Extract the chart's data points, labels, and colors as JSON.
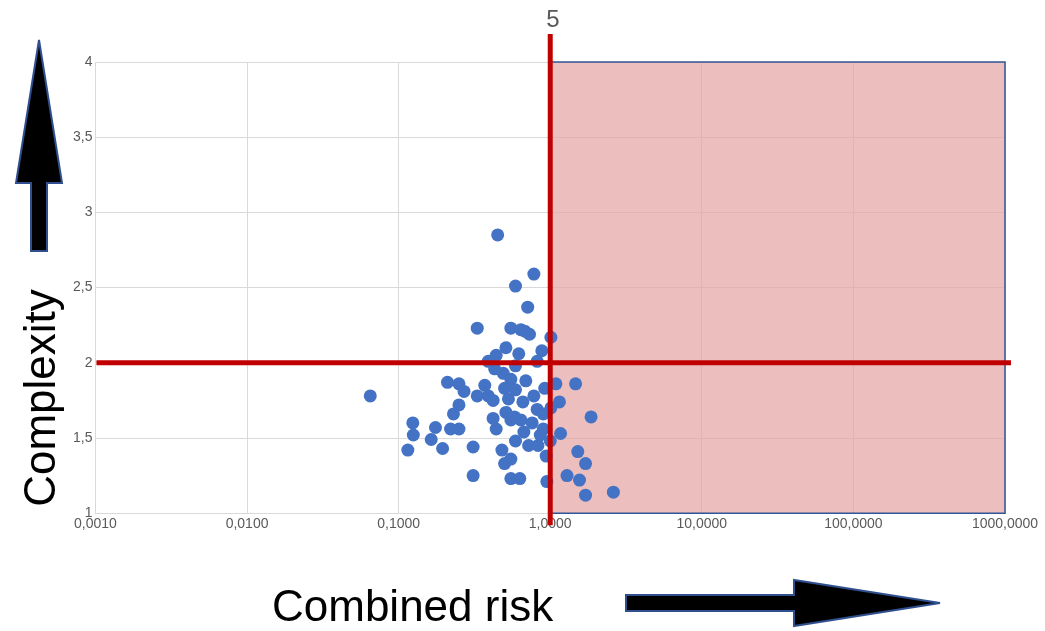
{
  "chart_data": {
    "type": "scatter",
    "xlabel": "Combined risk",
    "ylabel": "Complexity",
    "log": "x",
    "grid": true,
    "legend": false,
    "marker": "circle",
    "xlim": [
      0.001,
      1000
    ],
    "ylim": [
      1,
      4
    ],
    "xticks": [
      {
        "value": 0.001,
        "label": "0,0010"
      },
      {
        "value": 0.01,
        "label": "0,0100"
      },
      {
        "value": 0.1,
        "label": "0,1000"
      },
      {
        "value": 1,
        "label": "1,0000"
      },
      {
        "value": 10,
        "label": "10,0000"
      },
      {
        "value": 100,
        "label": "100,0000"
      },
      {
        "value": 1000,
        "label": "1000,0000"
      }
    ],
    "yticks": [
      1,
      {
        "value": 1.5,
        "label": "1,5"
      },
      2,
      {
        "value": 2.5,
        "label": "2,5"
      },
      3,
      {
        "value": 3.5,
        "label": "3,5"
      },
      4
    ],
    "annotations": [
      "5"
    ],
    "ref_lines": [
      {
        "axis": "x",
        "value": 1,
        "color": "#c00000"
      },
      {
        "axis": "y",
        "value": 2,
        "color": "#c00000"
      }
    ],
    "bands": [
      {
        "axis": "x",
        "from": 1,
        "to": 1000,
        "color": "#e6a3a3"
      }
    ],
    "series": [
      {
        "color": "#4472c4",
        "x": [
          0.45,
          0.78,
          0.59,
          0.71,
          0.33,
          0.55,
          0.64,
          0.68,
          0.73,
          1.01,
          0.51,
          0.88,
          0.44,
          0.62,
          0.39,
          0.82,
          0.59,
          0.43,
          0.49,
          0.69,
          0.55,
          0.21,
          0.25,
          0.27,
          0.37,
          1.09,
          1.47,
          0.065,
          0.33,
          0.39,
          0.5,
          0.59,
          0.78,
          0.92,
          1.15,
          0.25,
          0.42,
          0.53,
          0.66,
          1.01,
          0.23,
          0.51,
          0.82,
          1.86,
          0.42,
          0.55,
          0.64,
          0.76,
          0.124,
          0.175,
          0.22,
          0.25,
          0.44,
          0.9,
          1.17,
          0.125,
          0.164,
          0.59,
          1.0,
          0.115,
          0.195,
          0.31,
          0.72,
          0.83,
          0.48,
          1.52,
          0.94,
          0.55,
          0.5,
          1.71,
          0.31,
          1.29,
          0.55,
          0.63,
          0.95,
          1.56,
          1.71,
          2.61,
          0.9,
          0.86,
          0.58,
          0.67
        ],
        "values": [
          2.85,
          2.59,
          2.51,
          2.37,
          2.23,
          2.23,
          2.22,
          2.21,
          2.19,
          2.17,
          2.1,
          2.08,
          2.05,
          2.06,
          2.01,
          2.01,
          1.98,
          1.96,
          1.93,
          1.88,
          1.89,
          1.87,
          1.86,
          1.81,
          1.85,
          1.86,
          1.86,
          1.78,
          1.78,
          1.78,
          1.83,
          1.82,
          1.78,
          1.83,
          1.74,
          1.72,
          1.75,
          1.76,
          1.74,
          1.7,
          1.66,
          1.67,
          1.69,
          1.64,
          1.63,
          1.62,
          1.62,
          1.6,
          1.6,
          1.57,
          1.56,
          1.56,
          1.56,
          1.56,
          1.53,
          1.52,
          1.49,
          1.48,
          1.48,
          1.42,
          1.43,
          1.44,
          1.45,
          1.45,
          1.42,
          1.41,
          1.38,
          1.36,
          1.33,
          1.33,
          1.25,
          1.25,
          1.23,
          1.23,
          1.21,
          1.22,
          1.12,
          1.14,
          1.66,
          1.52,
          1.64,
          1.54
        ]
      }
    ]
  }
}
